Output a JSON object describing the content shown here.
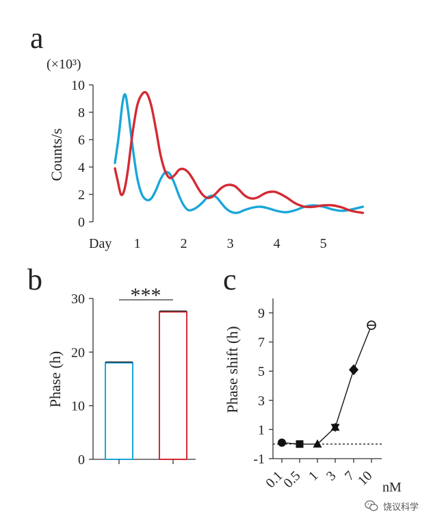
{
  "chart_data": [
    {
      "panel": "a",
      "type": "line",
      "unit_label": "(×10³)",
      "ylabel": "Counts/s",
      "xlabel": "Day",
      "ylim": [
        0,
        10
      ],
      "yticks": [
        "0",
        "2",
        "4",
        "6",
        "8",
        "10"
      ],
      "xlim": [
        0.5,
        5.85
      ],
      "xticks": [
        "1",
        "2",
        "3",
        "4",
        "5"
      ],
      "series": [
        {
          "name": "blue",
          "color": "#1aa6d9",
          "points": [
            [
              0.52,
              4.3
            ],
            [
              0.6,
              6.2
            ],
            [
              0.68,
              8.6
            ],
            [
              0.74,
              9.3
            ],
            [
              0.8,
              8.2
            ],
            [
              0.9,
              5.5
            ],
            [
              1.0,
              3.2
            ],
            [
              1.1,
              2.0
            ],
            [
              1.2,
              1.6
            ],
            [
              1.3,
              1.7
            ],
            [
              1.4,
              2.3
            ],
            [
              1.5,
              3.1
            ],
            [
              1.6,
              3.6
            ],
            [
              1.7,
              3.5
            ],
            [
              1.8,
              2.8
            ],
            [
              1.9,
              1.9
            ],
            [
              2.0,
              1.2
            ],
            [
              2.1,
              0.85
            ],
            [
              2.2,
              0.9
            ],
            [
              2.3,
              1.1
            ],
            [
              2.4,
              1.4
            ],
            [
              2.5,
              1.75
            ],
            [
              2.6,
              1.9
            ],
            [
              2.7,
              1.8
            ],
            [
              2.8,
              1.4
            ],
            [
              2.9,
              1.0
            ],
            [
              3.0,
              0.75
            ],
            [
              3.1,
              0.65
            ],
            [
              3.2,
              0.7
            ],
            [
              3.3,
              0.85
            ],
            [
              3.5,
              1.05
            ],
            [
              3.65,
              1.1
            ],
            [
              3.8,
              1.0
            ],
            [
              4.0,
              0.8
            ],
            [
              4.2,
              0.7
            ],
            [
              4.4,
              0.85
            ],
            [
              4.6,
              1.1
            ],
            [
              4.8,
              1.2
            ],
            [
              5.0,
              1.1
            ],
            [
              5.2,
              0.9
            ],
            [
              5.4,
              0.8
            ],
            [
              5.6,
              0.9
            ],
            [
              5.85,
              1.1
            ]
          ]
        },
        {
          "name": "red",
          "color": "#d42a33",
          "points": [
            [
              0.52,
              3.9
            ],
            [
              0.58,
              3.0
            ],
            [
              0.65,
              2.0
            ],
            [
              0.72,
              2.3
            ],
            [
              0.8,
              3.8
            ],
            [
              0.9,
              6.5
            ],
            [
              1.0,
              8.5
            ],
            [
              1.1,
              9.3
            ],
            [
              1.2,
              9.4
            ],
            [
              1.3,
              8.5
            ],
            [
              1.4,
              6.8
            ],
            [
              1.5,
              4.9
            ],
            [
              1.6,
              3.7
            ],
            [
              1.7,
              3.2
            ],
            [
              1.8,
              3.4
            ],
            [
              1.9,
              3.8
            ],
            [
              2.0,
              3.85
            ],
            [
              2.1,
              3.6
            ],
            [
              2.2,
              3.1
            ],
            [
              2.3,
              2.5
            ],
            [
              2.4,
              2.0
            ],
            [
              2.5,
              1.75
            ],
            [
              2.6,
              1.8
            ],
            [
              2.7,
              2.1
            ],
            [
              2.8,
              2.45
            ],
            [
              2.9,
              2.65
            ],
            [
              3.0,
              2.7
            ],
            [
              3.1,
              2.6
            ],
            [
              3.2,
              2.3
            ],
            [
              3.3,
              1.95
            ],
            [
              3.4,
              1.75
            ],
            [
              3.5,
              1.7
            ],
            [
              3.6,
              1.8
            ],
            [
              3.7,
              2.0
            ],
            [
              3.8,
              2.15
            ],
            [
              3.9,
              2.2
            ],
            [
              4.0,
              2.15
            ],
            [
              4.2,
              1.8
            ],
            [
              4.4,
              1.35
            ],
            [
              4.6,
              1.1
            ],
            [
              4.8,
              1.1
            ],
            [
              5.0,
              1.2
            ],
            [
              5.2,
              1.2
            ],
            [
              5.4,
              1.05
            ],
            [
              5.6,
              0.8
            ],
            [
              5.85,
              0.65
            ]
          ]
        }
      ]
    },
    {
      "panel": "b",
      "type": "bar",
      "ylabel": "Phase (h)",
      "ylim": [
        0,
        30
      ],
      "yticks": [
        "0",
        "10",
        "20",
        "30"
      ],
      "categories": [
        "",
        ""
      ],
      "values": [
        18.0,
        27.5
      ],
      "errors": [
        0.15,
        0.15
      ],
      "colors": [
        "#1aa6d9",
        "#d42a33"
      ],
      "significance": "***"
    },
    {
      "panel": "c",
      "type": "line",
      "ylabel": "Phase shift (h)",
      "xunit": "nM",
      "ylim": [
        -1,
        9
      ],
      "yticks": [
        "-1",
        "1",
        "3",
        "5",
        "7",
        "9"
      ],
      "categories": [
        "0.1",
        "0.5",
        "1",
        "3",
        "7",
        "10"
      ],
      "values": [
        0.1,
        0.0,
        0.0,
        1.15,
        5.1,
        8.15
      ],
      "markers": [
        "circle",
        "square",
        "triangle",
        "star",
        "diamond",
        "open-circle"
      ],
      "reference_line": 0
    }
  ],
  "panel_labels": [
    "a",
    "b",
    "c"
  ],
  "watermark": "饶议科学",
  "watermark_icon": "wechat-icon"
}
